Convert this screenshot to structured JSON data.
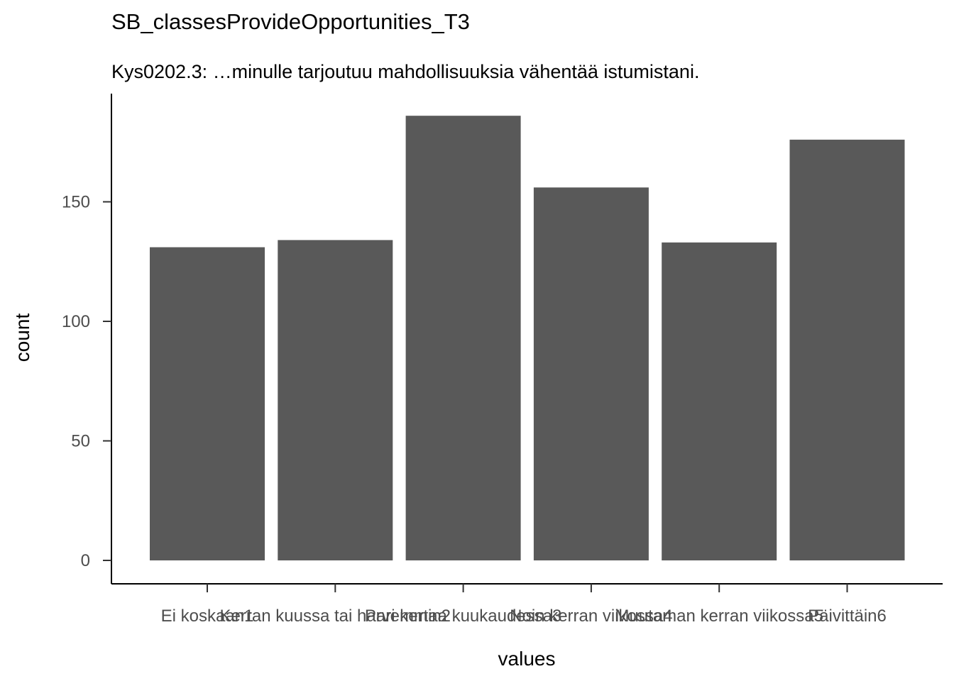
{
  "chart_data": {
    "type": "bar",
    "title": "SB_classesProvideOpportunities_T3",
    "subtitle": "Kys0202.3: …minulle tarjoutuu mahdollisuuksia vähentää istumistani.",
    "xlabel": "values",
    "ylabel": "count",
    "categories": [
      "Ei koskaan1",
      "Kerran kuussa tai harvemmin2",
      "Pari kertaa kuukaudessa3",
      "Noin kerran viikossa4",
      "Muutaman kerran viikossa5",
      "Päivittäin6"
    ],
    "values": [
      131,
      134,
      186,
      156,
      133,
      176
    ],
    "ylim": [
      0,
      195
    ],
    "yticks": [
      0,
      50,
      100,
      150
    ],
    "bar_color": "#595959",
    "grid": false,
    "legend": "none"
  }
}
